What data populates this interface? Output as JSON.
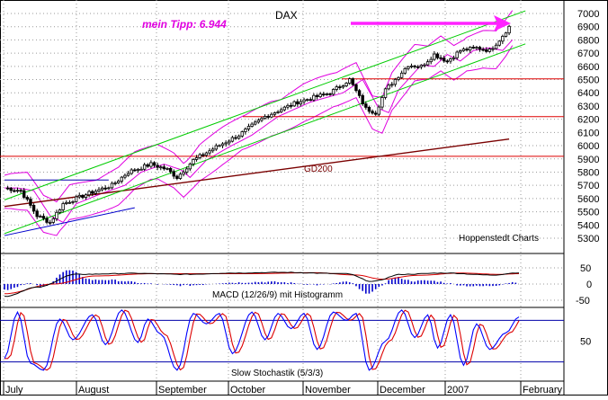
{
  "colors": {
    "candle": "#000000",
    "channel": "#00cc00",
    "bollinger": "#e000e0",
    "support": "#dd0000",
    "gd200": "#7a0000",
    "grid": "#9a9a9a",
    "macd_line": "#000000",
    "macd_signal": "#dd0000",
    "macd_hist": "#0000cc",
    "stoch_k": "#0000ff",
    "stoch_d": "#dd0000",
    "stoch_band": "#0000aa",
    "arrow": "#ff22ff",
    "tipp": "#e000e0"
  },
  "chart_data": [
    {
      "type": "candlestick",
      "title": "DAX",
      "annotation": "mein Tipp: 6.944",
      "source_label": "Hoppenstedt Charts",
      "indicator_label": "GD200",
      "x_labels": [
        "July",
        "August",
        "September",
        "October",
        "November",
        "December",
        "2007",
        "February"
      ],
      "ylim": [
        5300,
        7000
      ],
      "y_ticks": [
        5300,
        5400,
        5500,
        5600,
        5700,
        5800,
        5900,
        6000,
        6100,
        6200,
        6300,
        6400,
        6500,
        6600,
        6700,
        6800,
        6900,
        7000
      ],
      "support_levels": [
        5920,
        6220,
        6505
      ],
      "close_keypoints": [
        {
          "i": 0,
          "v": 5680
        },
        {
          "i": 5,
          "v": 5660
        },
        {
          "i": 10,
          "v": 5470
        },
        {
          "i": 14,
          "v": 5420
        },
        {
          "i": 18,
          "v": 5560
        },
        {
          "i": 26,
          "v": 5640
        },
        {
          "i": 33,
          "v": 5700
        },
        {
          "i": 38,
          "v": 5800
        },
        {
          "i": 45,
          "v": 5860
        },
        {
          "i": 50,
          "v": 5820
        },
        {
          "i": 53,
          "v": 5760
        },
        {
          "i": 58,
          "v": 5890
        },
        {
          "i": 65,
          "v": 5990
        },
        {
          "i": 72,
          "v": 6080
        },
        {
          "i": 80,
          "v": 6220
        },
        {
          "i": 90,
          "v": 6330
        },
        {
          "i": 100,
          "v": 6400
        },
        {
          "i": 106,
          "v": 6500
        },
        {
          "i": 111,
          "v": 6280
        },
        {
          "i": 114,
          "v": 6250
        },
        {
          "i": 117,
          "v": 6420
        },
        {
          "i": 124,
          "v": 6610
        },
        {
          "i": 128,
          "v": 6600
        },
        {
          "i": 132,
          "v": 6690
        },
        {
          "i": 136,
          "v": 6640
        },
        {
          "i": 140,
          "v": 6720
        },
        {
          "i": 145,
          "v": 6740
        },
        {
          "i": 149,
          "v": 6720
        },
        {
          "i": 152,
          "v": 6800
        },
        {
          "i": 155,
          "v": 6900
        }
      ],
      "gd200_line": [
        {
          "i": 0,
          "v": 5540
        },
        {
          "i": 155,
          "v": 6050
        }
      ],
      "channel_upper": [
        {
          "i": 0,
          "v": 5590
        },
        {
          "i": 160,
          "v": 7020
        }
      ],
      "channel_lower": [
        {
          "i": 0,
          "v": 5335
        },
        {
          "i": 160,
          "v": 6770
        }
      ],
      "channel_lower_early": [
        {
          "i": 0,
          "v": 5320
        },
        {
          "i": 40,
          "v": 5530
        }
      ],
      "blue_level": [
        {
          "i": 0,
          "v": 5740
        },
        {
          "i": 32,
          "v": 5740
        }
      ]
    },
    {
      "type": "line",
      "title": "MACD (12/26/9) mit Histogramm",
      "ylim": [
        -50,
        50
      ],
      "y_ticks": [
        50,
        0,
        -50
      ],
      "macd_keypoints": [
        {
          "i": 0,
          "v": -38
        },
        {
          "i": 10,
          "v": -10
        },
        {
          "i": 22,
          "v": 30
        },
        {
          "i": 40,
          "v": 33
        },
        {
          "i": 55,
          "v": 30
        },
        {
          "i": 70,
          "v": 34
        },
        {
          "i": 85,
          "v": 36
        },
        {
          "i": 105,
          "v": 32
        },
        {
          "i": 113,
          "v": 8
        },
        {
          "i": 122,
          "v": 30
        },
        {
          "i": 135,
          "v": 34
        },
        {
          "i": 150,
          "v": 28
        },
        {
          "i": 158,
          "v": 35
        }
      ],
      "signal_keypoints": [
        {
          "i": 0,
          "v": -30
        },
        {
          "i": 15,
          "v": 0
        },
        {
          "i": 28,
          "v": 25
        },
        {
          "i": 45,
          "v": 32
        },
        {
          "i": 60,
          "v": 32
        },
        {
          "i": 75,
          "v": 32
        },
        {
          "i": 95,
          "v": 35
        },
        {
          "i": 108,
          "v": 28
        },
        {
          "i": 116,
          "v": 15
        },
        {
          "i": 127,
          "v": 27
        },
        {
          "i": 140,
          "v": 34
        },
        {
          "i": 152,
          "v": 30
        },
        {
          "i": 158,
          "v": 32
        }
      ]
    },
    {
      "type": "line",
      "title": "Slow Stochastik (5/3/3)",
      "ylim": [
        0,
        100
      ],
      "y_ticks": [
        50
      ],
      "bands": [
        80,
        20
      ],
      "stoch_pivots": [
        {
          "i": 0,
          "v": 25
        },
        {
          "i": 4,
          "v": 92
        },
        {
          "i": 8,
          "v": 18
        },
        {
          "i": 12,
          "v": 8
        },
        {
          "i": 17,
          "v": 82
        },
        {
          "i": 21,
          "v": 52
        },
        {
          "i": 27,
          "v": 88
        },
        {
          "i": 31,
          "v": 45
        },
        {
          "i": 36,
          "v": 95
        },
        {
          "i": 41,
          "v": 48
        },
        {
          "i": 44,
          "v": 82
        },
        {
          "i": 48,
          "v": 60
        },
        {
          "i": 53,
          "v": 8
        },
        {
          "i": 58,
          "v": 90
        },
        {
          "i": 62,
          "v": 75
        },
        {
          "i": 66,
          "v": 90
        },
        {
          "i": 70,
          "v": 32
        },
        {
          "i": 76,
          "v": 92
        },
        {
          "i": 80,
          "v": 52
        },
        {
          "i": 84,
          "v": 90
        },
        {
          "i": 88,
          "v": 68
        },
        {
          "i": 92,
          "v": 90
        },
        {
          "i": 96,
          "v": 38
        },
        {
          "i": 101,
          "v": 92
        },
        {
          "i": 105,
          "v": 80
        },
        {
          "i": 108,
          "v": 90
        },
        {
          "i": 112,
          "v": 8
        },
        {
          "i": 117,
          "v": 50
        },
        {
          "i": 122,
          "v": 95
        },
        {
          "i": 126,
          "v": 55
        },
        {
          "i": 130,
          "v": 88
        },
        {
          "i": 133,
          "v": 40
        },
        {
          "i": 137,
          "v": 88
        },
        {
          "i": 141,
          "v": 15
        },
        {
          "i": 145,
          "v": 75
        },
        {
          "i": 149,
          "v": 38
        },
        {
          "i": 154,
          "v": 62
        },
        {
          "i": 158,
          "v": 85
        }
      ]
    }
  ]
}
